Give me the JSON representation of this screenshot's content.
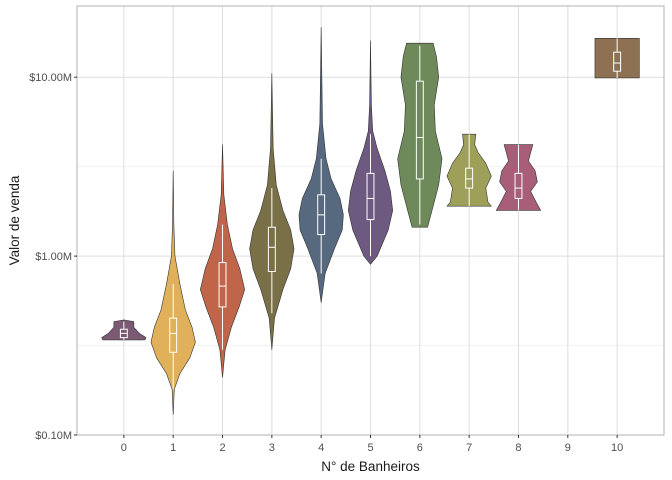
{
  "chart_data": {
    "type": "violin",
    "title": "",
    "xlabel": "N° de Banheiros",
    "ylabel": "Valor de venda",
    "y_scale": "log10",
    "ylim": [
      0.1,
      25
    ],
    "y_ticks": [
      0.1,
      1,
      10
    ],
    "y_tick_labels": [
      "$0.10M",
      "$1.00M",
      "$10.00M"
    ],
    "categories": [
      "0",
      "1",
      "2",
      "3",
      "4",
      "5",
      "6",
      "7",
      "8",
      "9",
      "10"
    ],
    "grid": true,
    "legend": "none",
    "series": [
      {
        "category": "0",
        "color": "#7B5A73",
        "min": 0.34,
        "max": 0.44,
        "box": {
          "q1": 0.35,
          "median": 0.37,
          "q3": 0.39
        },
        "whiskers": [
          0.34,
          0.43
        ],
        "profile": [
          [
            0.34,
            0.95
          ],
          [
            0.35,
            1.0
          ],
          [
            0.37,
            0.7
          ],
          [
            0.4,
            0.45
          ],
          [
            0.43,
            0.45
          ],
          [
            0.44,
            0.0
          ]
        ]
      },
      {
        "category": "1",
        "color": "#E0B05A",
        "min": 0.13,
        "max": 3.0,
        "box": {
          "q1": 0.29,
          "median": 0.37,
          "q3": 0.45
        },
        "whiskers": [
          0.18,
          0.7
        ],
        "profile": [
          [
            0.13,
            0.0
          ],
          [
            0.18,
            0.05
          ],
          [
            0.22,
            0.3
          ],
          [
            0.27,
            0.75
          ],
          [
            0.33,
            1.0
          ],
          [
            0.4,
            0.85
          ],
          [
            0.5,
            0.55
          ],
          [
            0.7,
            0.3
          ],
          [
            1.0,
            0.08
          ],
          [
            1.5,
            0.03
          ],
          [
            3.0,
            0.0
          ]
        ]
      },
      {
        "category": "2",
        "color": "#C0654A",
        "min": 0.21,
        "max": 4.2,
        "box": {
          "q1": 0.52,
          "median": 0.68,
          "q3": 0.92
        },
        "whiskers": [
          0.3,
          1.5
        ],
        "profile": [
          [
            0.21,
            0.0
          ],
          [
            0.3,
            0.12
          ],
          [
            0.4,
            0.4
          ],
          [
            0.52,
            0.75
          ],
          [
            0.65,
            1.0
          ],
          [
            0.85,
            0.78
          ],
          [
            1.1,
            0.45
          ],
          [
            1.5,
            0.22
          ],
          [
            2.2,
            0.06
          ],
          [
            4.2,
            0.0
          ]
        ]
      },
      {
        "category": "3",
        "color": "#7A7048",
        "min": 0.3,
        "max": 10.5,
        "box": {
          "q1": 0.82,
          "median": 1.12,
          "q3": 1.45
        },
        "whiskers": [
          0.48,
          2.4
        ],
        "profile": [
          [
            0.3,
            0.0
          ],
          [
            0.45,
            0.12
          ],
          [
            0.65,
            0.5
          ],
          [
            0.85,
            0.85
          ],
          [
            1.1,
            1.0
          ],
          [
            1.4,
            0.85
          ],
          [
            1.8,
            0.5
          ],
          [
            2.5,
            0.2
          ],
          [
            4.0,
            0.06
          ],
          [
            10.5,
            0.0
          ]
        ]
      },
      {
        "category": "4",
        "color": "#56697F",
        "min": 0.55,
        "max": 19.0,
        "box": {
          "q1": 1.32,
          "median": 1.7,
          "q3": 2.2
        },
        "whiskers": [
          0.8,
          3.5
        ],
        "profile": [
          [
            0.55,
            0.0
          ],
          [
            0.8,
            0.18
          ],
          [
            1.1,
            0.6
          ],
          [
            1.4,
            0.95
          ],
          [
            1.7,
            1.0
          ],
          [
            2.1,
            0.85
          ],
          [
            2.7,
            0.45
          ],
          [
            3.5,
            0.22
          ],
          [
            5.5,
            0.06
          ],
          [
            19.0,
            0.0
          ]
        ]
      },
      {
        "category": "5",
        "color": "#6E5A80",
        "min": 0.9,
        "max": 16.0,
        "box": {
          "q1": 1.6,
          "median": 2.1,
          "q3": 2.9
        },
        "whiskers": [
          1.0,
          4.8
        ],
        "profile": [
          [
            0.9,
            0.0
          ],
          [
            1.0,
            0.3
          ],
          [
            1.4,
            0.8
          ],
          [
            1.8,
            1.0
          ],
          [
            2.3,
            0.9
          ],
          [
            3.0,
            0.65
          ],
          [
            4.0,
            0.3
          ],
          [
            5.0,
            0.1
          ],
          [
            7.0,
            0.04
          ],
          [
            16.0,
            0.0
          ]
        ]
      },
      {
        "category": "6",
        "color": "#6E8A5A",
        "min": 1.45,
        "max": 15.5,
        "box": {
          "q1": 2.7,
          "median": 4.6,
          "q3": 9.5
        },
        "whiskers": [
          1.5,
          15.0
        ],
        "profile": [
          [
            1.45,
            0.35
          ],
          [
            1.8,
            0.55
          ],
          [
            2.5,
            0.85
          ],
          [
            3.5,
            1.0
          ],
          [
            5.0,
            0.7
          ],
          [
            7.0,
            0.65
          ],
          [
            10.0,
            0.85
          ],
          [
            13.0,
            0.75
          ],
          [
            15.5,
            0.6
          ]
        ]
      },
      {
        "category": "7",
        "color": "#9EA05A",
        "min": 1.9,
        "max": 4.8,
        "box": {
          "q1": 2.4,
          "median": 2.7,
          "q3": 3.1
        },
        "whiskers": [
          1.9,
          4.8
        ],
        "profile": [
          [
            1.9,
            1.0
          ],
          [
            2.0,
            0.85
          ],
          [
            2.4,
            0.75
          ],
          [
            2.8,
            1.0
          ],
          [
            3.3,
            0.75
          ],
          [
            3.8,
            0.4
          ],
          [
            4.2,
            0.25
          ],
          [
            4.8,
            0.3
          ]
        ]
      },
      {
        "category": "8",
        "color": "#A85E78",
        "min": 1.8,
        "max": 4.2,
        "box": {
          "q1": 2.1,
          "median": 2.4,
          "q3": 2.9
        },
        "whiskers": [
          1.8,
          4.2
        ],
        "profile": [
          [
            1.8,
            1.0
          ],
          [
            2.0,
            0.8
          ],
          [
            2.3,
            0.55
          ],
          [
            2.6,
            0.85
          ],
          [
            3.0,
            0.75
          ],
          [
            3.4,
            0.45
          ],
          [
            3.8,
            0.55
          ],
          [
            4.2,
            0.65
          ]
        ]
      },
      {
        "category": "10",
        "color": "#8E7152",
        "min": 9.9,
        "max": 16.5,
        "box": {
          "q1": 10.8,
          "median": 12.0,
          "q3": 13.8
        },
        "whiskers": [
          9.9,
          16.5
        ],
        "profile": [
          [
            9.9,
            1.0
          ],
          [
            12.0,
            1.0
          ],
          [
            14.0,
            1.0
          ],
          [
            16.5,
            1.0
          ]
        ]
      }
    ]
  }
}
